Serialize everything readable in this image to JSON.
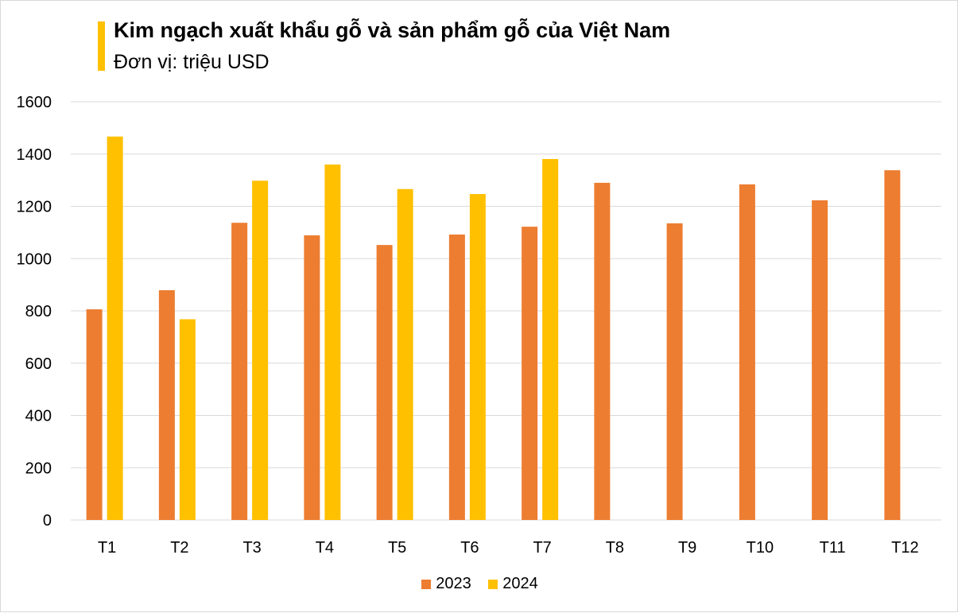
{
  "chart_data": {
    "type": "bar",
    "title": "Kim ngạch xuất khẩu gỗ và sản phẩm gỗ của Việt Nam",
    "subtitle": "Đơn vị: triệu USD",
    "categories": [
      "T1",
      "T2",
      "T3",
      "T4",
      "T5",
      "T6",
      "T7",
      "T8",
      "T9",
      "T10",
      "T11",
      "T12"
    ],
    "series": [
      {
        "name": "2023",
        "color": "#ED7D31",
        "values": [
          806,
          879,
          1137,
          1089,
          1052,
          1092,
          1122,
          1290,
          1135,
          1284,
          1223,
          1338
        ]
      },
      {
        "name": "2024",
        "color": "#FFC000",
        "values": [
          1467,
          768,
          1298,
          1360,
          1266,
          1247,
          1381,
          null,
          null,
          null,
          null,
          null
        ]
      }
    ],
    "ylim": [
      0,
      1600
    ],
    "yticks": [
      0,
      200,
      400,
      600,
      800,
      1000,
      1200,
      1400,
      1600
    ],
    "grid": true,
    "legend": "bottom",
    "accent_color": "#FFC000"
  }
}
